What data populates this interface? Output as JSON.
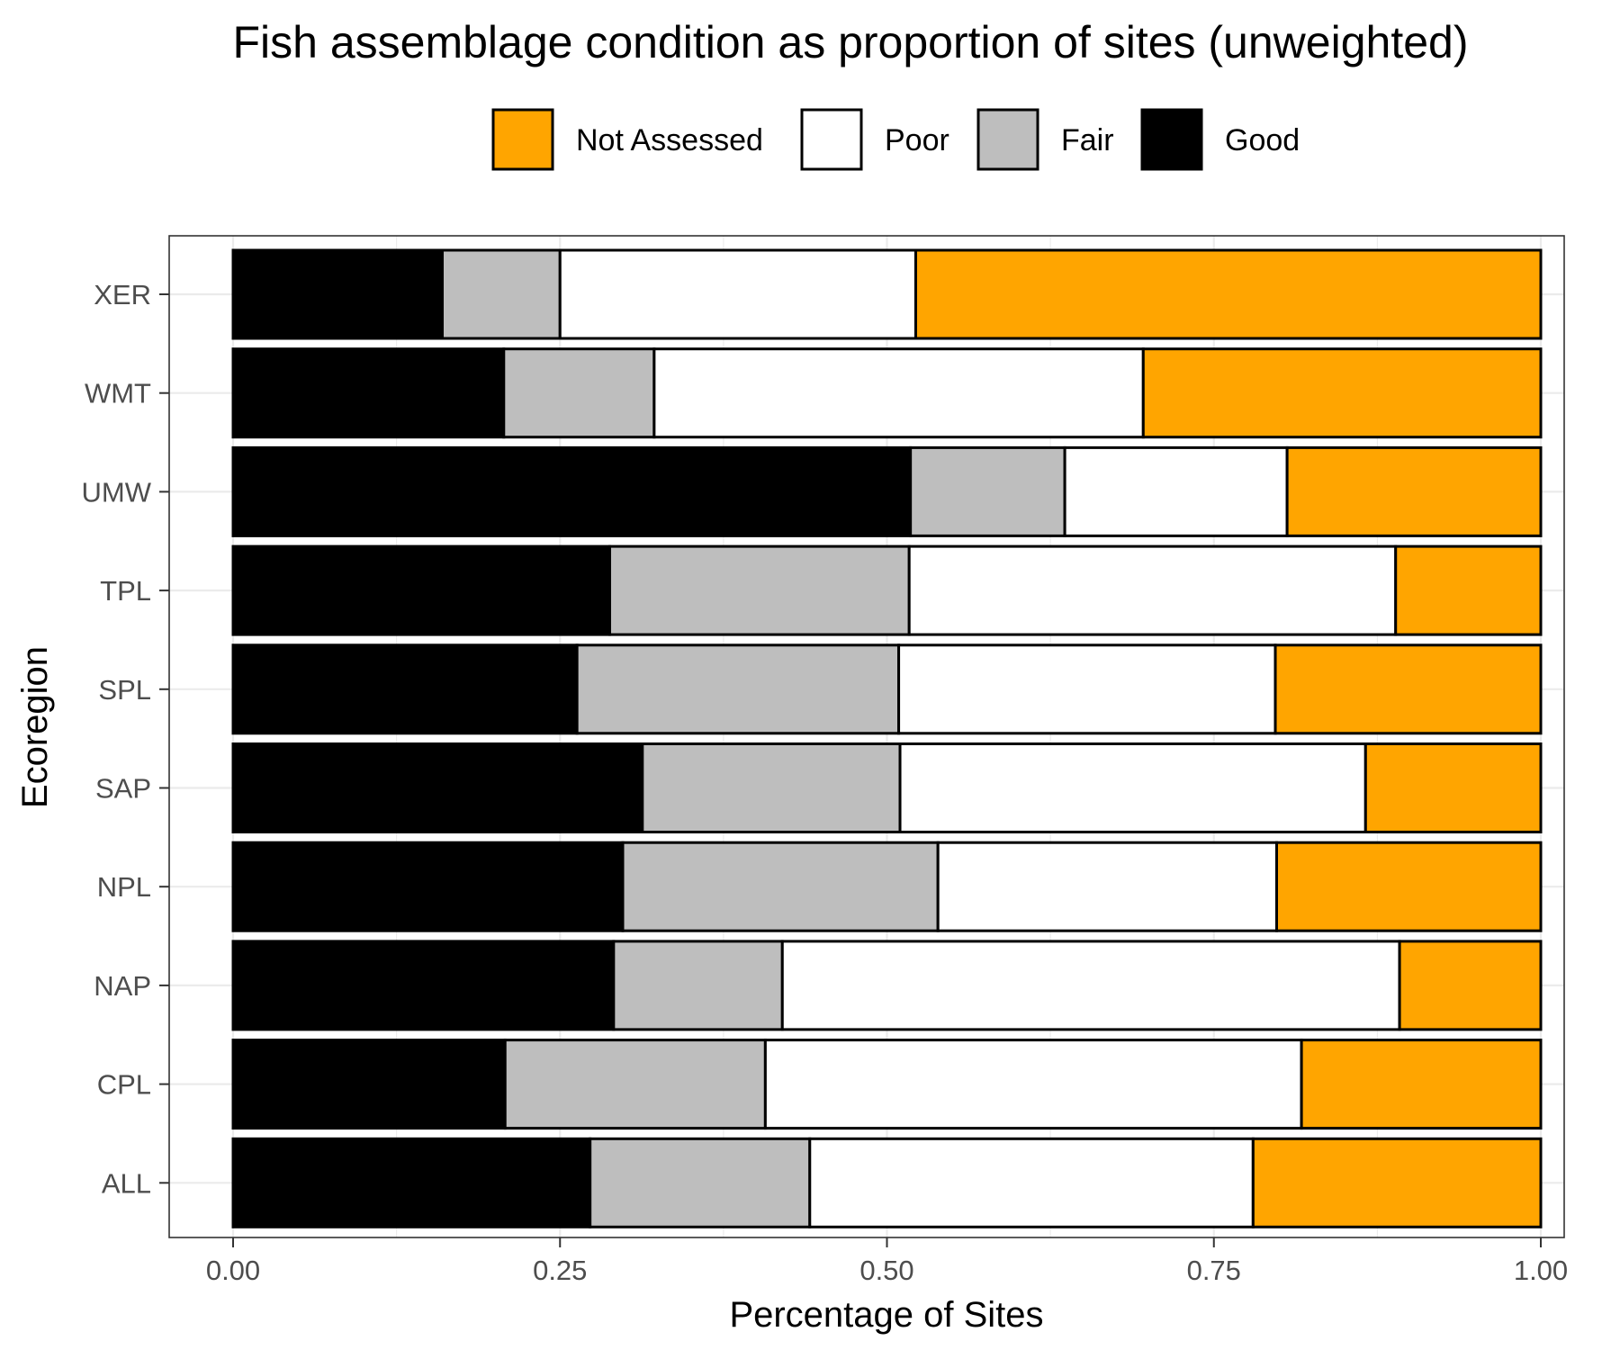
{
  "chart_data": {
    "type": "bar",
    "orientation": "horizontal",
    "stacked": true,
    "title": "Fish assemblage condition as proportion of sites (unweighted)",
    "xlabel": "Percentage of Sites",
    "ylabel": "Ecoregion",
    "xlim": [
      0,
      1
    ],
    "x_ticks": [
      "0.00",
      "0.25",
      "0.50",
      "0.75",
      "1.00"
    ],
    "x_tick_values": [
      0,
      0.25,
      0.5,
      0.75,
      1.0
    ],
    "grid": true,
    "legend_position": "top",
    "categories": [
      "XER",
      "WMT",
      "UMW",
      "TPL",
      "SPL",
      "SAP",
      "NPL",
      "NAP",
      "CPL",
      "ALL"
    ],
    "legend": [
      {
        "name": "Not Assessed",
        "color": "#FFA500"
      },
      {
        "name": "Poor",
        "color": "#FFFFFF"
      },
      {
        "name": "Fair",
        "color": "#BEBEBE"
      },
      {
        "name": "Good",
        "color": "#000000"
      }
    ],
    "series": [
      {
        "name": "Good",
        "color": "#000000",
        "values": [
          0.16,
          0.207,
          0.518,
          0.288,
          0.263,
          0.313,
          0.298,
          0.291,
          0.208,
          0.273
        ]
      },
      {
        "name": "Fair",
        "color": "#BEBEBE",
        "values": [
          0.09,
          0.115,
          0.118,
          0.229,
          0.246,
          0.197,
          0.241,
          0.129,
          0.199,
          0.168
        ]
      },
      {
        "name": "Poor",
        "color": "#FFFFFF",
        "values": [
          0.272,
          0.374,
          0.17,
          0.372,
          0.288,
          0.356,
          0.259,
          0.472,
          0.41,
          0.339
        ]
      },
      {
        "name": "Not Assessed",
        "color": "#FFA500",
        "values": [
          0.478,
          0.304,
          0.194,
          0.111,
          0.203,
          0.134,
          0.202,
          0.108,
          0.183,
          0.22
        ]
      }
    ]
  }
}
